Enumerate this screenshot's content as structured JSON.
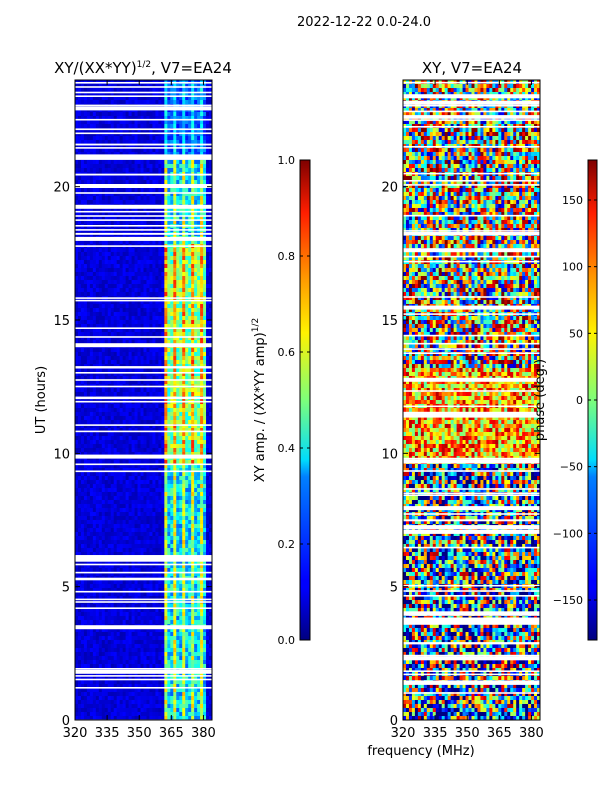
{
  "figure": {
    "suptitle": "2022-12-22 0.0-24.0",
    "shared_xlabel": "frequency (MHz)"
  },
  "chart_data": [
    {
      "type": "heatmap",
      "title": "XY/(XX*YY)^1/2, V7=EA24",
      "title_main": "XY/(XX*YY)",
      "title_sup": "1/2",
      "title_tail": ", V7=EA24",
      "xlabel": "frequency (MHz)",
      "ylabel": "UT (hours)",
      "xlim": [
        320,
        384
      ],
      "ylim": [
        0,
        24
      ],
      "xticks": [
        320,
        335,
        350,
        365,
        380
      ],
      "yticks": [
        0,
        5,
        10,
        15,
        20
      ],
      "colorbar": {
        "label": "XY amp. / (XX*YY amp)^1/2",
        "label_main": "XY amp. / (XX*YY amp)",
        "label_sup": "1/2",
        "range": [
          0.0,
          1.0
        ],
        "ticks": [
          "0.0",
          "0.2",
          "0.4",
          "0.6",
          "0.8",
          "1.0"
        ],
        "tick_values": [
          0.0,
          0.2,
          0.4,
          0.6,
          0.8,
          1.0
        ],
        "colormap": "jet"
      }
    },
    {
      "type": "heatmap",
      "title": "XY, V7=EA24",
      "xlabel": "frequency (MHz)",
      "ylabel": "",
      "xlim": [
        320,
        384
      ],
      "ylim": [
        0,
        24
      ],
      "xticks": [
        320,
        335,
        350,
        365,
        380
      ],
      "yticks": [
        0,
        5,
        10,
        15,
        20
      ],
      "colorbar": {
        "label": "phase (deg.)",
        "range": [
          -180,
          180
        ],
        "ticks": [
          "150",
          "100",
          "50",
          "0",
          "−50",
          "−100",
          "−150"
        ],
        "tick_values": [
          150,
          100,
          50,
          0,
          -50,
          -100,
          -150
        ],
        "colormap": "jet"
      }
    }
  ]
}
